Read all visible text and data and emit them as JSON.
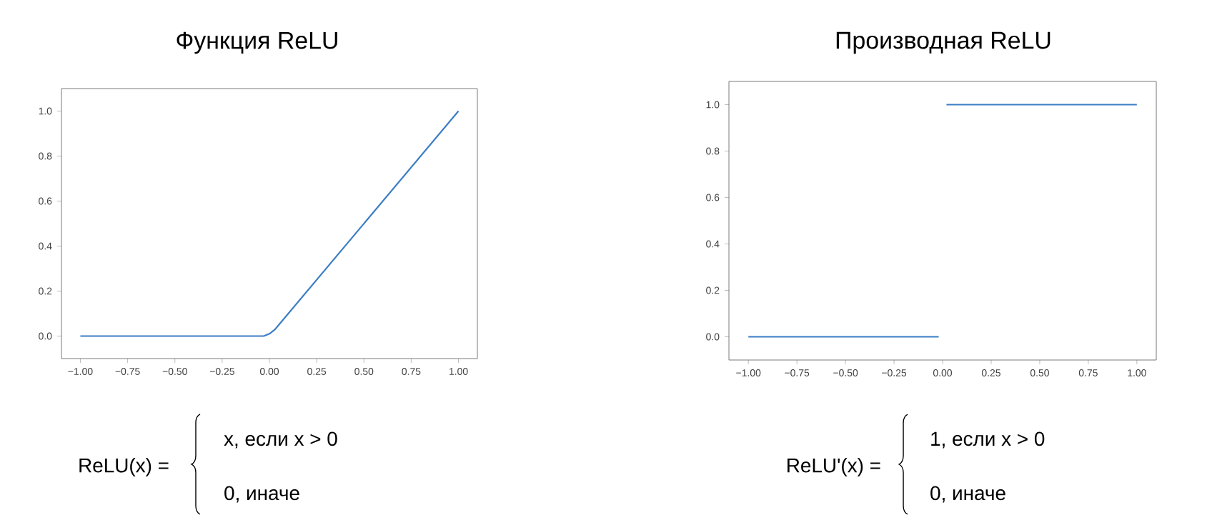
{
  "chart_data": [
    {
      "type": "line",
      "title": "Функция ReLU",
      "series": [
        {
          "color": "#3b7dc4",
          "x": [
            -1,
            -0.03,
            0,
            0.03,
            1
          ],
          "values": [
            0,
            0,
            0.01,
            0.03,
            1
          ]
        }
      ],
      "xlim": [
        -1.1,
        1.1
      ],
      "ylim": [
        -0.1,
        1.1
      ],
      "xticks": [
        {
          "value": -1,
          "label": "−1.00"
        },
        {
          "value": -0.75,
          "label": "−0.75"
        },
        {
          "value": -0.5,
          "label": "−0.50"
        },
        {
          "value": -0.25,
          "label": "−0.25"
        },
        {
          "value": 0,
          "label": "0.00"
        },
        {
          "value": 0.25,
          "label": "0.25"
        },
        {
          "value": 0.5,
          "label": "0.50"
        },
        {
          "value": 0.75,
          "label": "0.75"
        },
        {
          "value": 1,
          "label": "1.00"
        }
      ],
      "yticks": [
        {
          "value": 0,
          "label": "0.0"
        },
        {
          "value": 0.2,
          "label": "0.2"
        },
        {
          "value": 0.4,
          "label": "0.4"
        },
        {
          "value": 0.6,
          "label": "0.6"
        },
        {
          "value": 0.8,
          "label": "0.8"
        },
        {
          "value": 1,
          "label": "1.0"
        }
      ],
      "annotations": [
        "ReLU(x) =",
        "x, если x > 0",
        "0, иначе"
      ]
    },
    {
      "type": "line",
      "title": "Производная ReLU",
      "series": [
        {
          "color": "#3b7dc4",
          "x": [
            -1,
            -0.02
          ],
          "values": [
            0,
            0
          ]
        },
        {
          "color": "#3b7dc4",
          "x": [
            0.02,
            1
          ],
          "values": [
            1,
            1
          ]
        }
      ],
      "xlim": [
        -1.1,
        1.1
      ],
      "ylim": [
        -0.1,
        1.1
      ],
      "xticks": [
        {
          "value": -1,
          "label": "−1.00"
        },
        {
          "value": -0.75,
          "label": "−0.75"
        },
        {
          "value": -0.5,
          "label": "−0.50"
        },
        {
          "value": -0.25,
          "label": "−0.25"
        },
        {
          "value": 0,
          "label": "0.00"
        },
        {
          "value": 0.25,
          "label": "0.25"
        },
        {
          "value": 0.5,
          "label": "0.50"
        },
        {
          "value": 0.75,
          "label": "0.75"
        },
        {
          "value": 1,
          "label": "1.00"
        }
      ],
      "yticks": [
        {
          "value": 0,
          "label": "0.0"
        },
        {
          "value": 0.2,
          "label": "0.2"
        },
        {
          "value": 0.4,
          "label": "0.4"
        },
        {
          "value": 0.6,
          "label": "0.6"
        },
        {
          "value": 0.8,
          "label": "0.8"
        },
        {
          "value": 1,
          "label": "1.0"
        }
      ],
      "annotations": [
        "ReLU'(x) =",
        "1, если x > 0",
        "0, иначе"
      ]
    }
  ]
}
